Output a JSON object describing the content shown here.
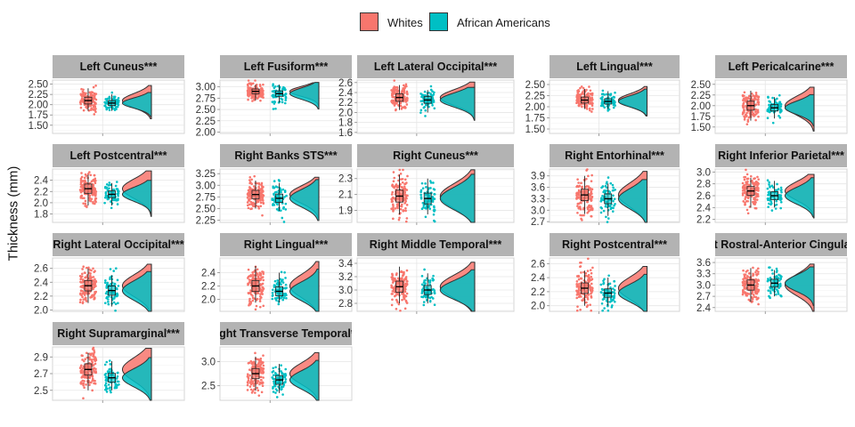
{
  "chart_data": {
    "type": "violin",
    "ylabel": "Thickness (mm)",
    "legend": {
      "placement": "top",
      "entries": [
        {
          "name": "Whites",
          "color": "#F8766D"
        },
        {
          "name": "African Americans",
          "color": "#00BFC4"
        }
      ]
    },
    "panels": [
      {
        "title": "Left Cuneus***",
        "ylim": [
          1.3,
          2.6
        ],
        "ticks": [
          1.5,
          1.75,
          2.0,
          2.25,
          2.5
        ],
        "tick_labels": [
          "1.50",
          "1.75",
          "2.00",
          "2.25",
          "2.50"
        ],
        "whites_median": 2.1,
        "aa_median": 2.04,
        "whites_range": [
          1.85,
          2.4
        ],
        "aa_range": [
          1.85,
          2.25
        ]
      },
      {
        "title": "Left Fusiform***",
        "ylim": [
          1.97,
          3.15
        ],
        "ticks": [
          2.0,
          2.25,
          2.5,
          2.75,
          3.0
        ],
        "tick_labels": [
          "2.00",
          "2.25",
          "2.50",
          "2.75",
          "3.00"
        ],
        "whites_median": 2.9,
        "aa_median": 2.85,
        "whites_range": [
          2.7,
          3.05
        ],
        "aa_range": [
          2.65,
          3.05
        ]
      },
      {
        "title": "Left Lateral Occipital***",
        "ylim": [
          1.58,
          2.65
        ],
        "ticks": [
          1.6,
          1.8,
          2.0,
          2.2,
          2.4,
          2.6
        ],
        "tick_labels": [
          "1.6",
          "1.8",
          "2.0",
          "2.2",
          "2.4",
          "2.6"
        ],
        "whites_median": 2.3,
        "aa_median": 2.25,
        "whites_range": [
          2.05,
          2.55
        ],
        "aa_range": [
          2.0,
          2.45
        ]
      },
      {
        "title": "Left Lingual***",
        "ylim": [
          1.4,
          2.6
        ],
        "ticks": [
          1.5,
          1.75,
          2.0,
          2.25,
          2.5
        ],
        "tick_labels": [
          "1.50",
          "1.75",
          "2.00",
          "2.25",
          "2.50"
        ],
        "whites_median": 2.15,
        "aa_median": 2.12,
        "whites_range": [
          1.95,
          2.4
        ],
        "aa_range": [
          1.95,
          2.35
        ]
      },
      {
        "title": "Left Pericalcarine***",
        "ylim": [
          1.35,
          2.6
        ],
        "ticks": [
          1.5,
          1.75,
          2.0,
          2.25,
          2.5
        ],
        "tick_labels": [
          "1.50",
          "1.75",
          "2.00",
          "2.25",
          "2.50"
        ],
        "whites_median": 2.0,
        "aa_median": 1.95,
        "whites_range": [
          1.65,
          2.35
        ],
        "aa_range": [
          1.7,
          2.2
        ]
      },
      {
        "title": "Left Postcentral***",
        "ylim": [
          1.65,
          2.6
        ],
        "ticks": [
          1.8,
          2.0,
          2.2,
          2.4
        ],
        "tick_labels": [
          "1.8",
          "2.0",
          "2.2",
          "2.4"
        ],
        "whites_median": 2.25,
        "aa_median": 2.15,
        "whites_range": [
          1.95,
          2.5
        ],
        "aa_range": [
          1.95,
          2.35
        ]
      },
      {
        "title": "Right Banks STS***",
        "ylim": [
          2.2,
          3.35
        ],
        "ticks": [
          2.25,
          2.5,
          2.75,
          3.0,
          3.25
        ],
        "tick_labels": [
          "2.25",
          "2.50",
          "2.75",
          "3.00",
          "3.25"
        ],
        "whites_median": 2.8,
        "aa_median": 2.72,
        "whites_range": [
          2.5,
          3.1
        ],
        "aa_range": [
          2.45,
          3.05
        ]
      },
      {
        "title": "Right Cuneus***",
        "ylim": [
          1.75,
          2.42
        ],
        "ticks": [
          1.9,
          2.1,
          2.3
        ],
        "tick_labels": [
          "1.9",
          "2.1",
          "2.3"
        ],
        "whites_median": 2.08,
        "aa_median": 2.05,
        "whites_range": [
          1.85,
          2.35
        ],
        "aa_range": [
          1.85,
          2.3
        ]
      },
      {
        "title": "Right Entorhinal***",
        "ylim": [
          2.68,
          4.08
        ],
        "ticks": [
          2.7,
          3.0,
          3.3,
          3.6,
          3.9
        ],
        "tick_labels": [
          "2.7",
          "3.0",
          "3.3",
          "3.6",
          "3.9"
        ],
        "whites_median": 3.4,
        "aa_median": 3.3,
        "whites_range": [
          2.9,
          3.9
        ],
        "aa_range": [
          2.85,
          3.7
        ]
      },
      {
        "title": "Right Inferior Parietal***",
        "ylim": [
          2.15,
          3.05
        ],
        "ticks": [
          2.2,
          2.4,
          2.6,
          2.8,
          3.0
        ],
        "tick_labels": [
          "2.2",
          "2.4",
          "2.6",
          "2.8",
          "3.0"
        ],
        "whites_median": 2.68,
        "aa_median": 2.6,
        "whites_range": [
          2.4,
          2.9
        ],
        "aa_range": [
          2.4,
          2.85
        ]
      },
      {
        "title": "Right Lateral Occipital***",
        "ylim": [
          1.98,
          2.75
        ],
        "ticks": [
          2.0,
          2.2,
          2.4,
          2.6
        ],
        "tick_labels": [
          "2.0",
          "2.2",
          "2.4",
          "2.6"
        ],
        "whites_median": 2.35,
        "aa_median": 2.28,
        "whites_range": [
          2.1,
          2.6
        ],
        "aa_range": [
          2.05,
          2.5
        ]
      },
      {
        "title": "Right Lingual***",
        "ylim": [
          1.82,
          2.62
        ],
        "ticks": [
          2.0,
          2.2,
          2.4
        ],
        "tick_labels": [
          "2.0",
          "2.2",
          "2.4"
        ],
        "whites_median": 2.2,
        "aa_median": 2.12,
        "whites_range": [
          1.95,
          2.5
        ],
        "aa_range": [
          1.95,
          2.4
        ]
      },
      {
        "title": "Right Middle Temporal***",
        "ylim": [
          2.68,
          3.48
        ],
        "ticks": [
          2.8,
          3.0,
          3.2,
          3.4
        ],
        "tick_labels": [
          "2.8",
          "3.0",
          "3.2",
          "3.4"
        ],
        "whites_median": 3.05,
        "aa_median": 3.0,
        "whites_range": [
          2.8,
          3.35
        ],
        "aa_range": [
          2.8,
          3.25
        ]
      },
      {
        "title": "Right Postcentral***",
        "ylim": [
          1.92,
          2.68
        ],
        "ticks": [
          2.0,
          2.2,
          2.4,
          2.6
        ],
        "tick_labels": [
          "2.0",
          "2.2",
          "2.4",
          "2.6"
        ],
        "whites_median": 2.25,
        "aa_median": 2.18,
        "whites_range": [
          2.0,
          2.5
        ],
        "aa_range": [
          2.0,
          2.4
        ]
      },
      {
        "title": "Right Rostral-Anterior Cingulate***",
        "ylim": [
          2.3,
          3.72
        ],
        "ticks": [
          2.4,
          2.7,
          3.0,
          3.3,
          3.6
        ],
        "tick_labels": [
          "2.4",
          "2.7",
          "3.0",
          "3.3",
          "3.6"
        ],
        "whites_median": 3.0,
        "aa_median": 3.05,
        "whites_range": [
          2.55,
          3.45
        ],
        "aa_range": [
          2.7,
          3.4
        ]
      },
      {
        "title": "Right Supramarginal***",
        "ylim": [
          2.38,
          3.02
        ],
        "ticks": [
          2.5,
          2.7,
          2.9
        ],
        "tick_labels": [
          "2.5",
          "2.7",
          "2.9"
        ],
        "whites_median": 2.75,
        "aa_median": 2.65,
        "whites_range": [
          2.5,
          2.95
        ],
        "aa_range": [
          2.5,
          2.85
        ]
      },
      {
        "title": "Right Transverse Temporal***",
        "ylim": [
          2.2,
          3.3
        ],
        "ticks": [
          2.5,
          3.0
        ],
        "tick_labels": [
          "2.5",
          "3.0"
        ],
        "whites_median": 2.75,
        "aa_median": 2.62,
        "whites_range": [
          2.4,
          3.1
        ],
        "aa_range": [
          2.35,
          2.95
        ]
      }
    ]
  }
}
